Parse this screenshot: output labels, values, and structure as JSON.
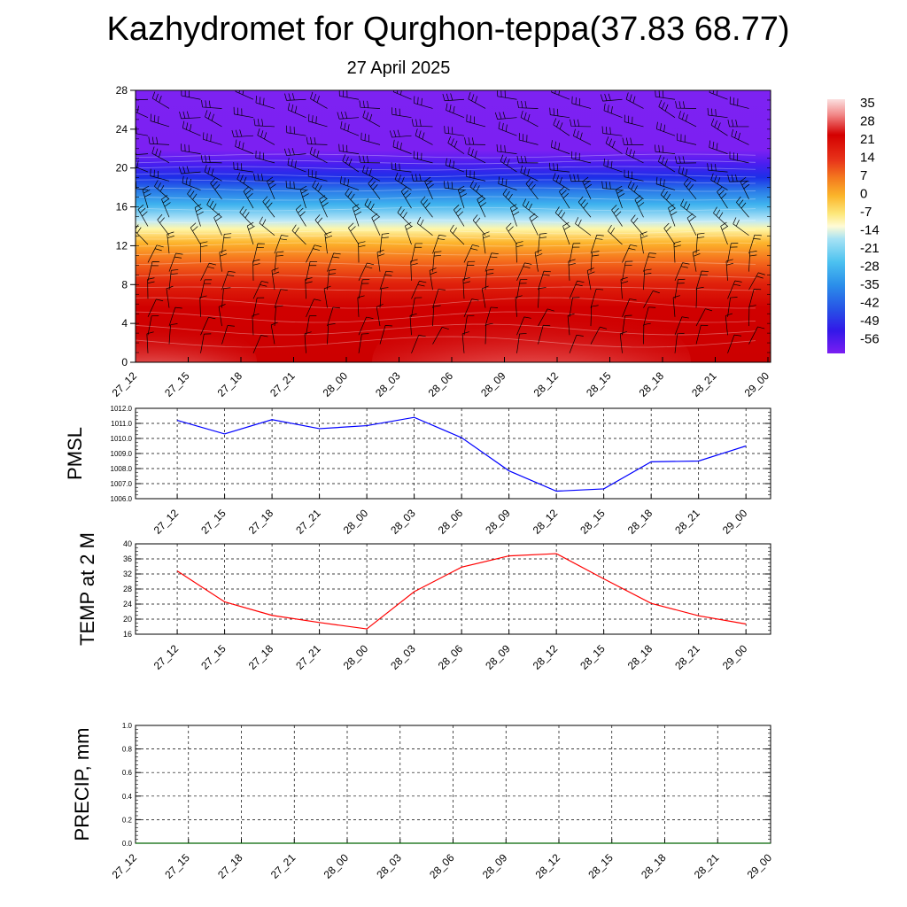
{
  "header": {
    "title": "Kazhydromet for Qurghon-teppa(37.83 68.77)",
    "date": "27 April 2025"
  },
  "colors": {
    "pressure_line": "#0000ff",
    "temperature_line": "#ff0000",
    "precip_line": "#006400",
    "grid": "#000000"
  },
  "chart_data": [
    {
      "type": "heatmap",
      "name": "temperature-wind-profile",
      "x": [
        "27_12",
        "27_15",
        "27_18",
        "27_21",
        "28_00",
        "28_03",
        "28_06",
        "28_09",
        "28_12",
        "28_15",
        "28_18",
        "28_21",
        "29_00"
      ],
      "yticks": [
        0,
        4,
        8,
        12,
        16,
        20,
        24,
        28
      ],
      "ylim": [
        0,
        28
      ],
      "colorbar": {
        "labels": [
          "35",
          "28",
          "21",
          "14",
          "7",
          "0",
          "-7",
          "-14",
          "-21",
          "-28",
          "-35",
          "-42",
          "-49",
          "-56"
        ],
        "colors": [
          "#fbe0e0",
          "#f06a6a",
          "#d40000",
          "#e8341a",
          "#f47a1e",
          "#fbb52a",
          "#fde77a",
          "#fffbd6",
          "#a6e2f4",
          "#4cc2f0",
          "#2b8fea",
          "#2750e6",
          "#3218e8",
          "#7b1ef2"
        ]
      },
      "profile_note_levels": [
        0,
        28
      ]
    },
    {
      "type": "line",
      "name": "pmsl",
      "ylabel": "PMSL",
      "x": [
        "27_12",
        "27_15",
        "27_18",
        "27_21",
        "28_00",
        "28_03",
        "28_06",
        "28_09",
        "28_12",
        "28_15",
        "28_18",
        "28_21",
        "29_00"
      ],
      "yticks": [
        "1006.0",
        "1007.0",
        "1008.0",
        "1009.0",
        "1010.0",
        "1011.0",
        "1012.0"
      ],
      "ylim": [
        1006.0,
        1012.0
      ],
      "values": [
        1011.2,
        1010.3,
        1011.25,
        1010.65,
        1010.85,
        1011.4,
        1010.05,
        1007.85,
        1006.5,
        1006.65,
        1008.45,
        1008.5,
        1009.5
      ]
    },
    {
      "type": "line",
      "name": "temp-2m",
      "ylabel": "TEMP at 2 M",
      "x": [
        "27_12",
        "27_15",
        "27_18",
        "27_21",
        "28_00",
        "28_03",
        "28_06",
        "28_09",
        "28_12",
        "28_15",
        "28_18",
        "28_21",
        "29_00"
      ],
      "yticks": [
        "16",
        "20",
        "24",
        "28",
        "32",
        "36",
        "40"
      ],
      "ylim": [
        16,
        40
      ],
      "values": [
        32.8,
        24.6,
        21.0,
        19.1,
        17.4,
        27.3,
        33.8,
        36.8,
        37.4,
        30.7,
        24.2,
        20.9,
        18.7
      ]
    },
    {
      "type": "line",
      "name": "precip",
      "ylabel": "PRECIP, mm",
      "x": [
        "27_12",
        "27_15",
        "27_18",
        "27_21",
        "28_00",
        "28_03",
        "28_06",
        "28_09",
        "28_12",
        "28_15",
        "28_18",
        "28_21",
        "29_00"
      ],
      "yticks": [
        "0.0",
        "0.2",
        "0.4",
        "0.6",
        "0.8",
        "1.0"
      ],
      "ylim": [
        0.0,
        1.0
      ],
      "values": [
        0,
        0,
        0,
        0,
        0,
        0,
        0,
        0,
        0,
        0,
        0,
        0,
        0
      ]
    }
  ]
}
